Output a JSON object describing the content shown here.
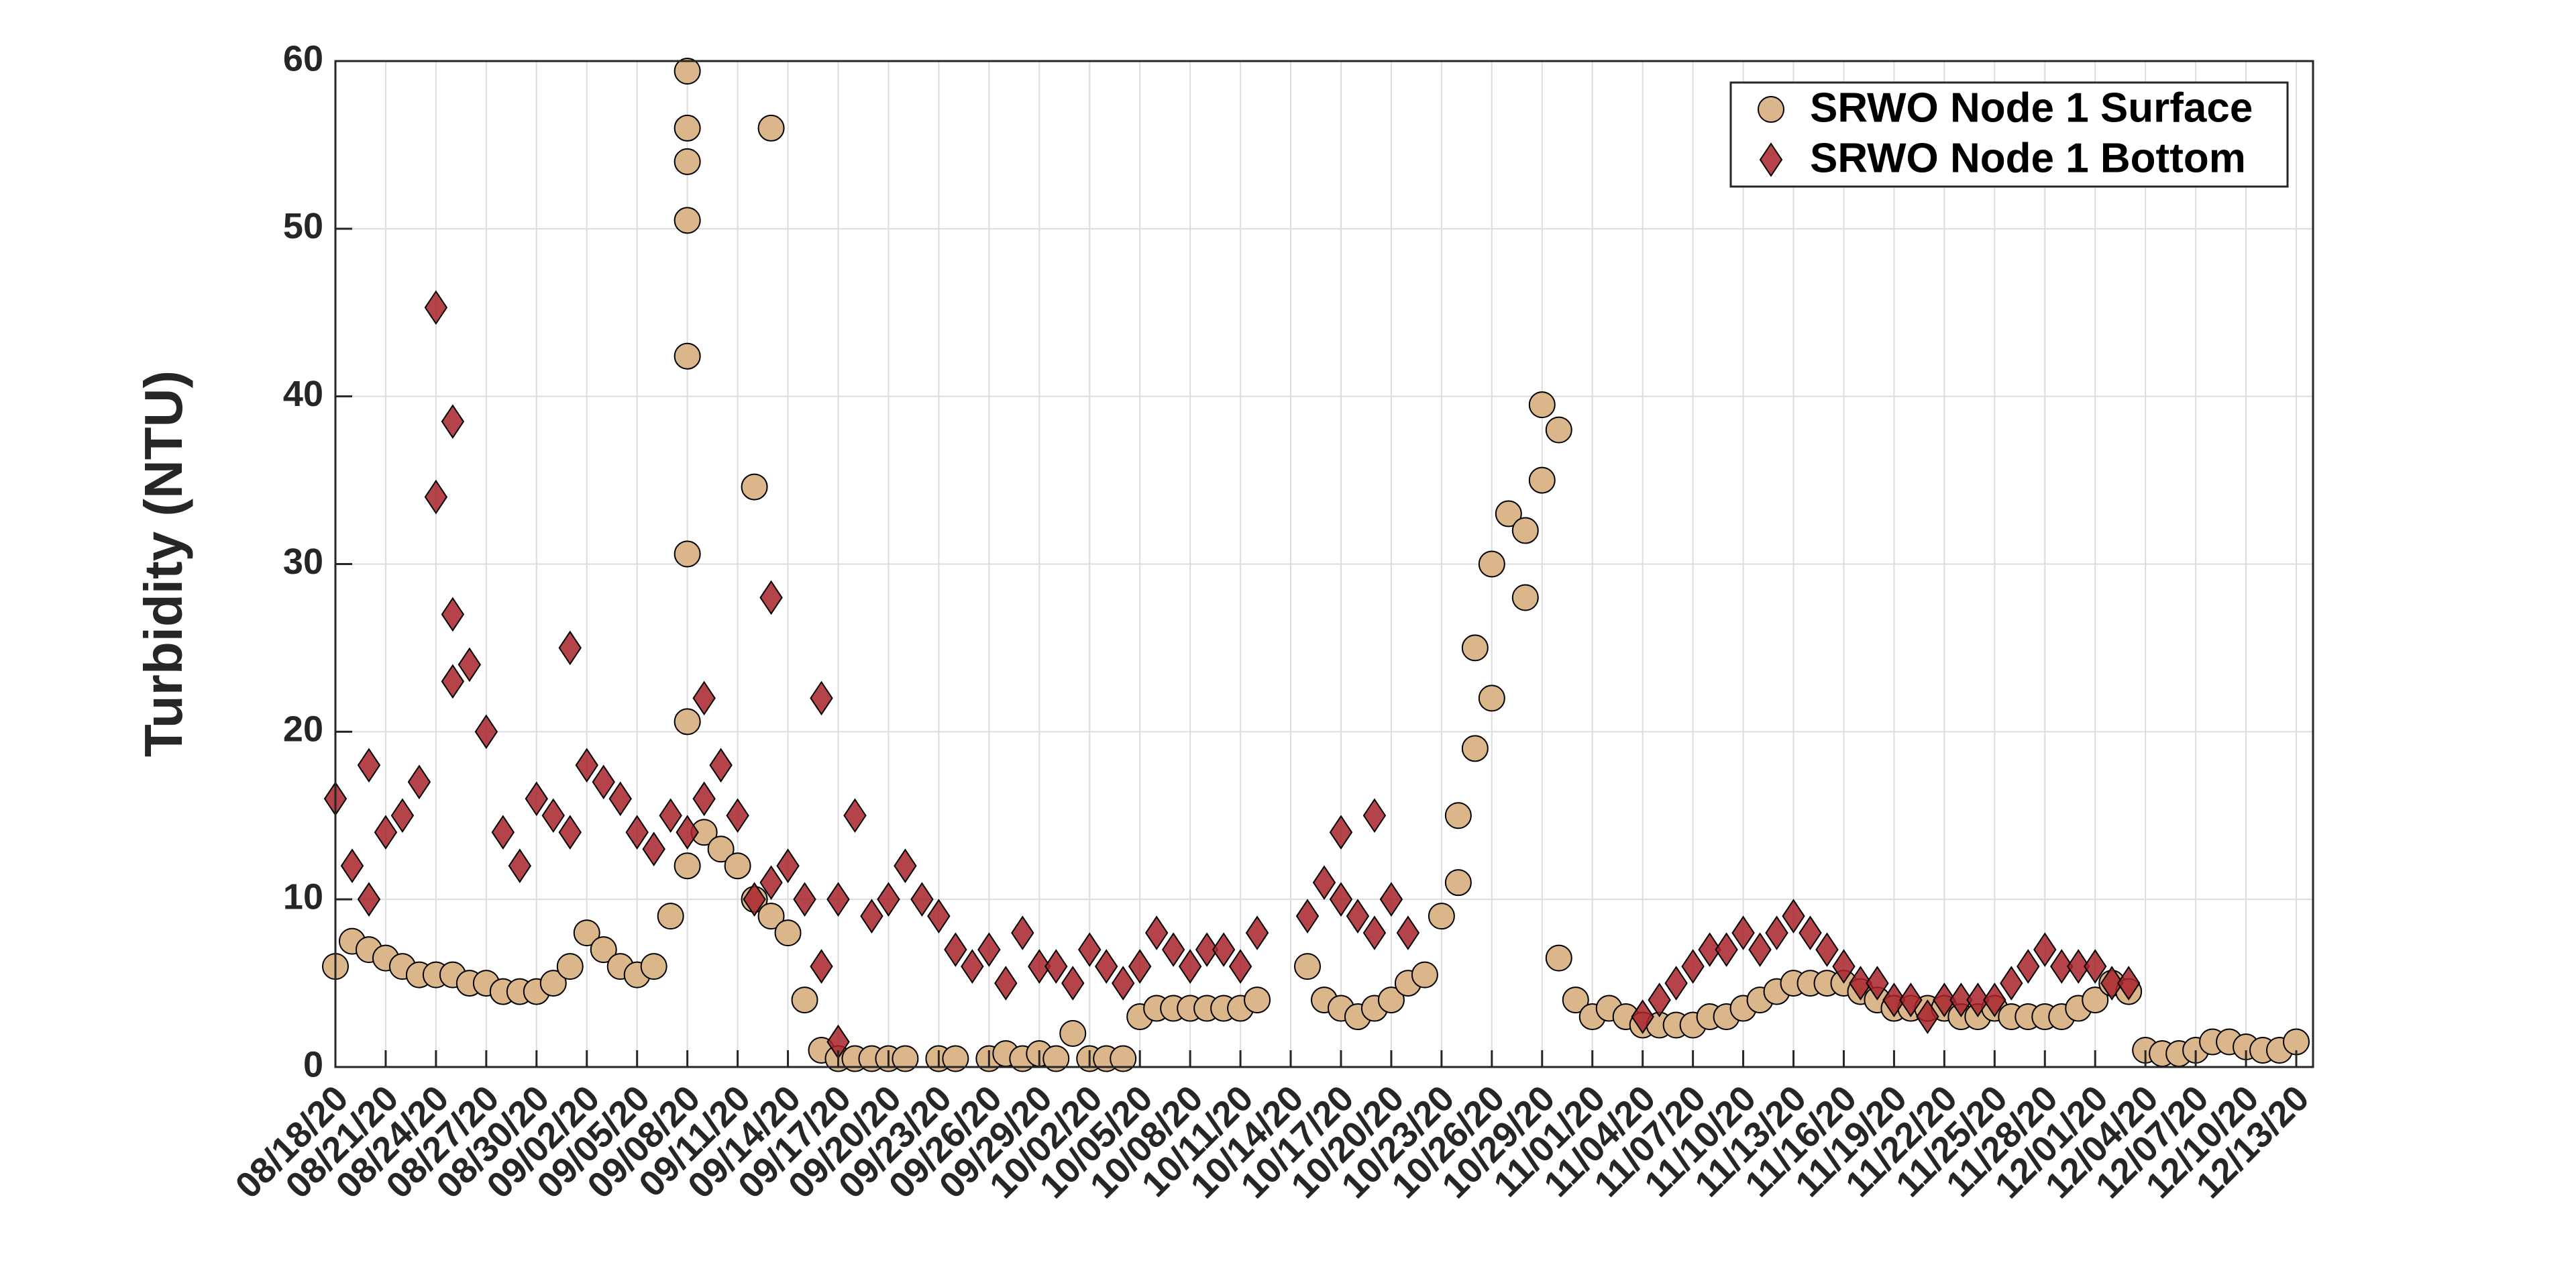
{
  "chart_data": {
    "type": "scatter",
    "ylabel": "Turbidity (NTU)",
    "ylim": [
      0,
      60
    ],
    "yticks": [
      0,
      10,
      20,
      30,
      40,
      50,
      60
    ],
    "xlim": [
      "08/18/20",
      "12/14/20"
    ],
    "xticks": [
      "08/18/20",
      "08/21/20",
      "08/24/20",
      "08/27/20",
      "08/30/20",
      "09/02/20",
      "09/05/20",
      "09/08/20",
      "09/11/20",
      "09/14/20",
      "09/17/20",
      "09/20/20",
      "09/23/20",
      "09/26/20",
      "09/29/20",
      "10/02/20",
      "10/05/20",
      "10/08/20",
      "10/11/20",
      "10/14/20",
      "10/17/20",
      "10/20/20",
      "10/23/20",
      "10/26/20",
      "10/29/20",
      "11/01/20",
      "11/04/20",
      "11/07/20",
      "11/10/20",
      "11/13/20",
      "11/16/20",
      "11/19/20",
      "11/22/20",
      "11/25/20",
      "11/28/20",
      "12/01/20",
      "12/04/20",
      "12/07/20",
      "12/10/20",
      "12/13/20"
    ],
    "grid": true,
    "legend": "northeast",
    "series": [
      {
        "name": "SRWO Node 1 Surface",
        "color": "#dbb68a",
        "marker": "circle",
        "x": [
          "08/18/20",
          "08/19/20",
          "08/20/20",
          "08/21/20",
          "08/22/20",
          "08/23/20",
          "08/24/20",
          "08/25/20",
          "08/26/20",
          "08/27/20",
          "08/28/20",
          "08/29/20",
          "08/30/20",
          "08/31/20",
          "09/01/20",
          "09/02/20",
          "09/03/20",
          "09/04/20",
          "09/05/20",
          "09/06/20",
          "09/07/20",
          "09/08/20",
          "09/09/20",
          "09/10/20",
          "09/11/20",
          "09/12/20",
          "09/13/20",
          "09/14/20",
          "09/15/20",
          "09/16/20",
          "09/17/20",
          "09/18/20",
          "09/19/20",
          "09/20/20",
          "09/21/20",
          "09/23/20",
          "09/24/20",
          "09/26/20",
          "09/27/20",
          "09/28/20",
          "09/29/20",
          "09/30/20",
          "10/01/20",
          "10/02/20",
          "10/03/20",
          "10/04/20",
          "10/05/20",
          "10/06/20",
          "10/07/20",
          "10/08/20",
          "10/09/20",
          "10/10/20",
          "10/11/20",
          "10/12/20",
          "10/15/20",
          "10/16/20",
          "10/17/20",
          "10/18/20",
          "10/19/20",
          "10/20/20",
          "10/21/20",
          "10/22/20",
          "10/23/20",
          "10/24/20",
          "10/25/20",
          "10/26/20",
          "10/27/20",
          "10/28/20",
          "10/29/20",
          "10/30/20",
          "10/31/20",
          "11/01/20",
          "11/02/20",
          "11/03/20",
          "11/04/20",
          "11/05/20",
          "11/06/20",
          "11/07/20",
          "11/08/20",
          "11/09/20",
          "11/10/20",
          "11/11/20",
          "11/12/20",
          "11/13/20",
          "11/14/20",
          "11/15/20",
          "11/16/20",
          "11/17/20",
          "11/18/20",
          "11/19/20",
          "11/20/20",
          "11/21/20",
          "11/22/20",
          "11/23/20",
          "11/24/20",
          "11/25/20",
          "11/26/20",
          "11/27/20",
          "11/28/20",
          "11/29/20",
          "11/30/20",
          "12/01/20",
          "12/02/20",
          "12/03/20",
          "12/04/20",
          "12/05/20",
          "12/06/20",
          "12/07/20",
          "12/08/20",
          "12/09/20",
          "12/10/20",
          "12/11/20",
          "12/12/20",
          "12/13/20",
          "09/08/20",
          "09/08/20",
          "09/08/20",
          "09/08/20",
          "09/08/20",
          "09/08/20",
          "09/08/20",
          "09/12/20",
          "09/13/20",
          "10/26/20",
          "10/29/20",
          "10/28/20",
          "10/30/20",
          "10/24/20",
          "10/25/20"
        ],
        "values": [
          6,
          7.5,
          7,
          6.5,
          6,
          5.5,
          5.5,
          5.5,
          5,
          5,
          4.5,
          4.5,
          4.5,
          5,
          6,
          8,
          7,
          6,
          5.5,
          6,
          9,
          12,
          14,
          13,
          12,
          10,
          9,
          8,
          4,
          1,
          0.5,
          0.5,
          0.5,
          0.5,
          0.5,
          0.5,
          0.5,
          0.5,
          0.8,
          0.5,
          0.8,
          0.5,
          2,
          0.5,
          0.5,
          0.5,
          3,
          3.5,
          3.5,
          3.5,
          3.5,
          3.5,
          3.5,
          4,
          6,
          4,
          3.5,
          3,
          3.5,
          4,
          5,
          5.5,
          9,
          15,
          25,
          30,
          33,
          32,
          35,
          38,
          4,
          3,
          3.5,
          3,
          2.5,
          2.5,
          2.5,
          2.5,
          3,
          3,
          3.5,
          4,
          4.5,
          5,
          5,
          5,
          5,
          4.5,
          4,
          3.5,
          3.5,
          3.5,
          3.5,
          3,
          3,
          3.5,
          3,
          3,
          3,
          3,
          3.5,
          4,
          5,
          4.5,
          1,
          0.8,
          0.8,
          1,
          1.5,
          1.5,
          1.2,
          1,
          1,
          1.5,
          59.4,
          56,
          54,
          50.5,
          42.4,
          30.6,
          20.6,
          34.6,
          56,
          22,
          39.5,
          28,
          6.5,
          11,
          19
        ]
      },
      {
        "name": "SRWO Node 1 Bottom",
        "color": "#a8232a",
        "marker": "diamond",
        "x": [
          "08/18/20",
          "08/19/20",
          "08/20/20",
          "08/21/20",
          "08/22/20",
          "08/23/20",
          "08/24/20",
          "08/25/20",
          "08/26/20",
          "08/27/20",
          "08/28/20",
          "08/29/20",
          "08/30/20",
          "08/31/20",
          "09/01/20",
          "09/02/20",
          "09/03/20",
          "09/04/20",
          "09/05/20",
          "09/06/20",
          "09/07/20",
          "09/08/20",
          "09/09/20",
          "09/10/20",
          "09/11/20",
          "09/12/20",
          "09/13/20",
          "09/14/20",
          "09/15/20",
          "09/16/20",
          "09/17/20",
          "09/18/20",
          "09/19/20",
          "09/20/20",
          "09/21/20",
          "09/22/20",
          "09/23/20",
          "09/24/20",
          "09/25/20",
          "09/26/20",
          "09/27/20",
          "09/28/20",
          "09/29/20",
          "09/30/20",
          "10/01/20",
          "10/02/20",
          "10/03/20",
          "10/04/20",
          "10/05/20",
          "10/06/20",
          "10/07/20",
          "10/08/20",
          "10/09/20",
          "10/10/20",
          "10/11/20",
          "10/12/20",
          "10/15/20",
          "10/16/20",
          "10/17/20",
          "10/18/20",
          "10/19/20",
          "10/20/20",
          "10/21/20",
          "11/04/20",
          "11/05/20",
          "11/06/20",
          "11/07/20",
          "11/08/20",
          "11/09/20",
          "11/10/20",
          "11/11/20",
          "11/12/20",
          "11/13/20",
          "11/14/20",
          "11/15/20",
          "11/16/20",
          "11/17/20",
          "11/18/20",
          "11/19/20",
          "11/20/20",
          "11/21/20",
          "11/22/20",
          "11/23/20",
          "11/24/20",
          "11/25/20",
          "11/26/20",
          "11/27/20",
          "11/28/20",
          "11/29/20",
          "11/30/20",
          "12/01/20",
          "12/02/20",
          "12/03/20",
          "08/25/20",
          "08/24/20",
          "09/13/20",
          "09/16/20",
          "09/01/20",
          "08/20/20",
          "10/19/20",
          "08/25/20",
          "09/09/20",
          "09/17/20",
          "10/17/20"
        ],
        "values": [
          16,
          12,
          10,
          14,
          15,
          17,
          45.3,
          27,
          24,
          20,
          14,
          12,
          16,
          15,
          14,
          18,
          17,
          16,
          14,
          13,
          15,
          14,
          16,
          18,
          15,
          10,
          11,
          12,
          10,
          6,
          10,
          15,
          9,
          10,
          12,
          10,
          9,
          7,
          6,
          7,
          5,
          8,
          6,
          6,
          5,
          7,
          6,
          5,
          6,
          8,
          7,
          6,
          7,
          7,
          6,
          8,
          9,
          11,
          10,
          9,
          8,
          10,
          8,
          3,
          4,
          5,
          6,
          7,
          7,
          8,
          7,
          8,
          9,
          8,
          7,
          6,
          5,
          5,
          4,
          4,
          3,
          4,
          4,
          4,
          4,
          5,
          6,
          7,
          6,
          6,
          6,
          5,
          5,
          38.5,
          34,
          28,
          22,
          25,
          18,
          15,
          23,
          22,
          1.5,
          14
        ]
      }
    ]
  }
}
